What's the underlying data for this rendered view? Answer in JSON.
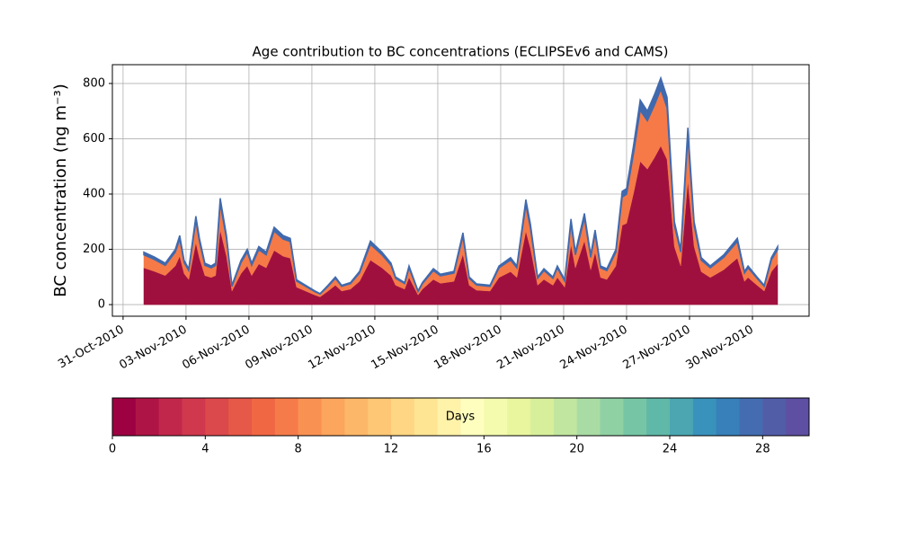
{
  "chart_data": {
    "type": "stacked_area",
    "title": "Age contribution to BC concentrations (ECLIPSEv6 and CAMS)",
    "y_label": "BC concentration (ng m⁻³)",
    "x": [
      0.99,
      1.5,
      2.01,
      2.49,
      2.7,
      2.91,
      3.13,
      3.47,
      3.64,
      3.9,
      4.2,
      4.41,
      4.63,
      4.93,
      5.19,
      5.62,
      5.92,
      6.13,
      6.47,
      6.82,
      7.2,
      7.63,
      7.97,
      8.27,
      8.7,
      9.13,
      9.39,
      9.77,
      10.12,
      10.42,
      10.84,
      11.27,
      11.79,
      12.34,
      12.77,
      12.99,
      13.42,
      13.63,
      14.06,
      14.27,
      14.79,
      15.13,
      15.77,
      16.2,
      16.5,
      16.85,
      17.49,
      17.92,
      18.47,
      18.77,
      19.2,
      19.42,
      19.76,
      20.06,
      20.49,
      20.7,
      21.05,
      21.35,
      21.56,
      21.99,
      22.29,
      22.5,
      22.76,
      23.06,
      23.49,
      23.79,
      24.0,
      24.34,
      24.65,
      24.99,
      25.33,
      25.63,
      25.93,
      26.28,
      26.58,
      26.92,
      27.22,
      27.56,
      27.99,
      28.63,
      29.28,
      29.62,
      29.79,
      30.22,
      30.56,
      30.9,
      31.2
    ],
    "series": [
      {
        "color": "#a0103f",
        "values": [
          133,
          120,
          105,
          140,
          175,
          112,
          91,
          224,
          168,
          105,
          98,
          105,
          270,
          175,
          49,
          112,
          140,
          105,
          147,
          133,
          196,
          175,
          168,
          63,
          49,
          35,
          28,
          49,
          70,
          49,
          56,
          84,
          161,
          133,
          105,
          70,
          56,
          98,
          35,
          56,
          91,
          77,
          84,
          182,
          70,
          52,
          49,
          98,
          119,
          98,
          266,
          203,
          70,
          91,
          70,
          98,
          63,
          217,
          133,
          231,
          126,
          189,
          98,
          91,
          140,
          287,
          294,
          406,
          518,
          490,
          532,
          574,
          525,
          210,
          140,
          448,
          210,
          119,
          98,
          126,
          168,
          84,
          98,
          70,
          49,
          119,
          147
        ]
      },
      {
        "color": "#f57a48",
        "values": [
          47,
          43,
          37,
          50,
          62,
          40,
          32,
          80,
          60,
          37,
          35,
          37,
          96,
          62,
          17,
          40,
          50,
          37,
          52,
          47,
          70,
          62,
          60,
          22,
          17,
          12,
          10,
          17,
          25,
          17,
          20,
          30,
          57,
          47,
          37,
          25,
          20,
          35,
          12,
          20,
          32,
          27,
          30,
          65,
          25,
          19,
          17,
          35,
          42,
          35,
          95,
          72,
          25,
          32,
          25,
          35,
          22,
          77,
          47,
          82,
          45,
          67,
          35,
          32,
          50,
          102,
          105,
          145,
          185,
          175,
          190,
          205,
          187,
          75,
          50,
          160,
          75,
          42,
          35,
          45,
          60,
          30,
          35,
          25,
          17,
          42,
          52
        ]
      },
      {
        "color": "#4169ad",
        "values": [
          10,
          9,
          8,
          10,
          13,
          8,
          7,
          16,
          12,
          8,
          7,
          8,
          19,
          13,
          4,
          8,
          10,
          8,
          11,
          10,
          14,
          13,
          12,
          5,
          4,
          3,
          2,
          4,
          5,
          4,
          4,
          6,
          12,
          10,
          8,
          5,
          4,
          7,
          3,
          4,
          7,
          6,
          6,
          13,
          5,
          4,
          4,
          7,
          9,
          7,
          19,
          15,
          5,
          7,
          5,
          7,
          5,
          16,
          10,
          17,
          9,
          14,
          7,
          7,
          10,
          21,
          21,
          29,
          37,
          35,
          38,
          41,
          38,
          15,
          10,
          32,
          15,
          9,
          7,
          9,
          12,
          6,
          7,
          5,
          4,
          9,
          11
        ]
      }
    ],
    "xlim": [
      -0.51,
      32.7
    ],
    "xticks": [
      {
        "value": 0,
        "label": "31-Oct-2010"
      },
      {
        "value": 3,
        "label": "03-Nov-2010"
      },
      {
        "value": 6,
        "label": "06-Nov-2010"
      },
      {
        "value": 9,
        "label": "09-Nov-2010"
      },
      {
        "value": 12,
        "label": "12-Nov-2010"
      },
      {
        "value": 15,
        "label": "15-Nov-2010"
      },
      {
        "value": 18,
        "label": "18-Nov-2010"
      },
      {
        "value": 21,
        "label": "21-Nov-2010"
      },
      {
        "value": 24,
        "label": "24-Nov-2010"
      },
      {
        "value": 27,
        "label": "27-Nov-2010"
      },
      {
        "value": 30,
        "label": "30-Nov-2010"
      }
    ],
    "ylim": [
      -42,
      868
    ],
    "yticks": [
      0,
      200,
      400,
      600,
      800
    ],
    "grid": true,
    "colorbar": {
      "label": "Days",
      "lim": [
        0,
        30
      ],
      "ticks": [
        0,
        4,
        8,
        12,
        16,
        20,
        24,
        28
      ],
      "colors": [
        "#9e0142",
        "#af1446",
        "#c1274a",
        "#d0384e",
        "#dc494c",
        "#e65848",
        "#f06744",
        "#f57c4a",
        "#f99153",
        "#fca55d",
        "#fdb768",
        "#fdc776",
        "#fed684",
        "#fee593",
        "#fff2a9",
        "#feffbe",
        "#f4faae",
        "#e9f69e",
        "#d7ef9b",
        "#c1e6a0",
        "#a9dca4",
        "#90d1a4",
        "#76c6a5",
        "#60b8a8",
        "#4ba6b1",
        "#3992bb",
        "#3780b9",
        "#436db0",
        "#525da8",
        "#5e4fa2"
      ]
    }
  }
}
